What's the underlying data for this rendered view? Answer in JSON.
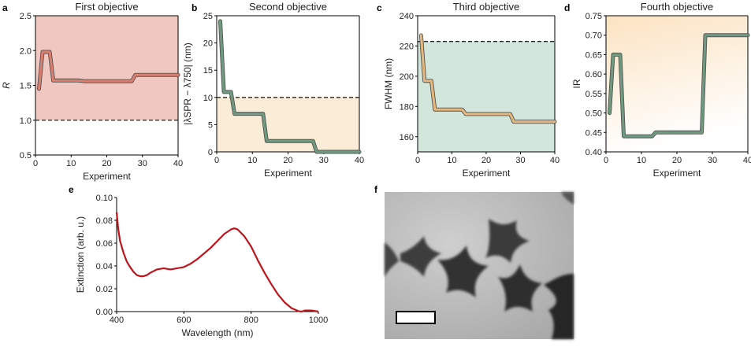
{
  "chart_data": [
    {
      "panel": "a",
      "type": "line",
      "title": "First objective",
      "xlabel": "Experiment",
      "ylabel": "R",
      "xlim": [
        0,
        40
      ],
      "ylim": [
        0.5,
        2.5
      ],
      "xticks": [
        0,
        10,
        20,
        30,
        40
      ],
      "yticks": [
        0.5,
        1.0,
        1.5,
        2.0,
        2.5
      ],
      "ytick_labels": [
        "0.5",
        "1.0",
        "1.5",
        "2.0",
        "2.5"
      ],
      "threshold": 1.0,
      "shade": "above",
      "shade_color": "#f1c7c1",
      "line_color": "#d97d6e",
      "x": [
        1,
        2,
        3,
        4,
        5,
        6,
        8,
        10,
        12,
        14,
        16,
        18,
        20,
        22,
        24,
        26,
        27,
        28,
        30,
        32,
        34,
        36,
        38,
        40
      ],
      "values": [
        1.45,
        1.98,
        1.98,
        1.98,
        1.57,
        1.57,
        1.57,
        1.57,
        1.57,
        1.56,
        1.56,
        1.56,
        1.56,
        1.56,
        1.56,
        1.56,
        1.56,
        1.65,
        1.65,
        1.65,
        1.65,
        1.65,
        1.65,
        1.65
      ]
    },
    {
      "panel": "b",
      "type": "line",
      "title": "Second objective",
      "xlabel": "Experiment",
      "ylabel": "|λSPR − λ750| (nm)",
      "xlim": [
        0,
        40
      ],
      "ylim": [
        0,
        25
      ],
      "xticks": [
        0,
        10,
        20,
        30,
        40
      ],
      "yticks": [
        0,
        5,
        10,
        15,
        20,
        25
      ],
      "ytick_labels": [
        "0",
        "5",
        "10",
        "15",
        "20",
        "25"
      ],
      "threshold": 10,
      "shade": "below",
      "shade_color": "#fbecd7",
      "line_color": "#6f9a80",
      "x": [
        1,
        2,
        3,
        4,
        5,
        6,
        8,
        10,
        12,
        13,
        14,
        16,
        18,
        20,
        22,
        24,
        26,
        27,
        28,
        30,
        32,
        34,
        36,
        38,
        40
      ],
      "values": [
        24,
        11,
        11,
        11,
        7,
        7,
        7,
        7,
        7,
        7,
        2,
        2,
        2,
        2,
        2,
        2,
        2,
        2,
        0,
        0,
        0,
        0,
        0,
        0,
        0
      ]
    },
    {
      "panel": "c",
      "type": "line",
      "title": "Third objective",
      "xlabel": "Experiment",
      "ylabel": "FWHM (nm)",
      "xlim": [
        0,
        40
      ],
      "ylim": [
        150,
        240
      ],
      "xticks": [
        0,
        10,
        20,
        30,
        40
      ],
      "yticks": [
        160,
        180,
        200,
        220,
        240
      ],
      "ytick_labels": [
        "160",
        "180",
        "200",
        "220",
        "240"
      ],
      "threshold": 223,
      "shade": "below",
      "shade_color": "#d3e6dc",
      "line_color": "#e3b77c",
      "x": [
        1,
        2,
        3,
        4,
        5,
        6,
        8,
        10,
        12,
        13,
        14,
        16,
        18,
        20,
        22,
        24,
        26,
        27,
        28,
        30,
        32,
        34,
        36,
        38,
        40
      ],
      "values": [
        227,
        197,
        197,
        197,
        178,
        178,
        178,
        178,
        178,
        178,
        175,
        175,
        175,
        175,
        175,
        175,
        175,
        175,
        170,
        170,
        170,
        170,
        170,
        170,
        170
      ]
    },
    {
      "panel": "d",
      "type": "line",
      "title": "Fourth objective",
      "xlabel": "Experiment",
      "ylabel": "IR",
      "xlim": [
        0,
        40
      ],
      "ylim": [
        0.4,
        0.75
      ],
      "xticks": [
        0,
        10,
        20,
        30,
        40
      ],
      "yticks": [
        0.4,
        0.45,
        0.5,
        0.55,
        0.6,
        0.65,
        0.7,
        0.75
      ],
      "ytick_labels": [
        "0.40",
        "0.45",
        "0.50",
        "0.55",
        "0.60",
        "0.65",
        "0.70",
        "0.75"
      ],
      "shade": "gradient",
      "shade_color": "#fbe6c8",
      "line_color": "#6f9a80",
      "x": [
        1,
        2,
        3,
        4,
        5,
        6,
        8,
        10,
        12,
        13,
        14,
        16,
        18,
        20,
        22,
        24,
        26,
        27,
        28,
        30,
        32,
        34,
        36,
        38,
        40
      ],
      "values": [
        0.5,
        0.65,
        0.65,
        0.65,
        0.44,
        0.44,
        0.44,
        0.44,
        0.44,
        0.44,
        0.45,
        0.45,
        0.45,
        0.45,
        0.45,
        0.45,
        0.45,
        0.45,
        0.7,
        0.7,
        0.7,
        0.7,
        0.7,
        0.7,
        0.7
      ]
    },
    {
      "panel": "e",
      "type": "line",
      "title": "",
      "xlabel": "Wavelength (nm)",
      "ylabel": "Extinction (arb. u.)",
      "xlim": [
        400,
        1000
      ],
      "ylim": [
        0,
        0.1
      ],
      "xticks": [
        400,
        600,
        800,
        1000
      ],
      "yticks": [
        0,
        0.02,
        0.04,
        0.06,
        0.08,
        0.1
      ],
      "ytick_labels": [
        "0.00",
        "0.02",
        "0.04",
        "0.06",
        "0.08",
        "0.10"
      ],
      "line_color": "#c0141b",
      "x": [
        400,
        405,
        410,
        420,
        430,
        440,
        450,
        460,
        470,
        480,
        490,
        500,
        520,
        540,
        560,
        580,
        600,
        620,
        640,
        660,
        680,
        700,
        720,
        740,
        750,
        760,
        780,
        800,
        820,
        840,
        860,
        880,
        900,
        920,
        940,
        950,
        960,
        980,
        1000
      ],
      "values": [
        0.087,
        0.072,
        0.062,
        0.052,
        0.044,
        0.039,
        0.035,
        0.032,
        0.031,
        0.031,
        0.032,
        0.034,
        0.037,
        0.038,
        0.037,
        0.038,
        0.039,
        0.042,
        0.046,
        0.051,
        0.056,
        0.062,
        0.068,
        0.072,
        0.073,
        0.072,
        0.066,
        0.057,
        0.045,
        0.034,
        0.024,
        0.015,
        0.008,
        0.003,
        0.0005,
        0.0,
        0.001,
        0.001,
        0.0
      ]
    }
  ],
  "panel_labels": {
    "a": "a",
    "b": "b",
    "c": "c",
    "d": "d",
    "e": "e",
    "f": "f"
  },
  "micrograph": {
    "scale_bar": "unlabeled"
  }
}
